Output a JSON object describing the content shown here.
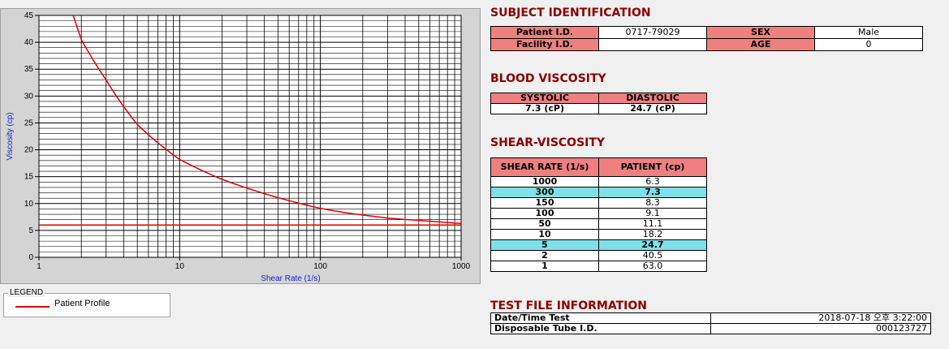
{
  "chart_data": {
    "type": "line",
    "xlabel": "Shear Rate (1/s)",
    "ylabel": "Viscosity (cp)",
    "xscale": "log",
    "xlim": [
      1,
      1000
    ],
    "ylim": [
      0,
      45
    ],
    "x_ticks": [
      "1",
      "10",
      "100",
      "1000"
    ],
    "y_ticks": [
      "0",
      "5",
      "10",
      "15",
      "20",
      "25",
      "30",
      "35",
      "40",
      "45"
    ],
    "grid": true,
    "series": [
      {
        "name": "Patient Profile",
        "color": "#e00000",
        "x": [
          2,
          3,
          5,
          10,
          20,
          50,
          100,
          150,
          300,
          1000
        ],
        "y": [
          40.5,
          33,
          24.7,
          18.2,
          14.5,
          11.1,
          9.1,
          8.3,
          7.3,
          6.3
        ]
      },
      {
        "name": "",
        "color": "#e00000",
        "x": [
          1,
          1000
        ],
        "y": [
          6,
          6
        ]
      }
    ],
    "legend_position": "bottom-left"
  },
  "legend": {
    "title": "LEGEND",
    "entries": [
      "Patient Profile"
    ]
  },
  "subject": {
    "title": "SUBJECT IDENTIFICATION",
    "patient_id_label": "Patient I.D.",
    "patient_id_value": "0717-79029",
    "sex_label": "SEX",
    "sex_value": "Male",
    "facility_id_label": "Facility I.D.",
    "facility_id_value": "",
    "age_label": "AGE",
    "age_value": "0"
  },
  "blood_viscosity": {
    "title": "BLOOD VISCOSITY",
    "systolic_label": "SYSTOLIC",
    "diastolic_label": "DIASTOLIC",
    "systolic_value": "7.3 (cP)",
    "diastolic_value": "24.7 (cP)"
  },
  "shear_viscosity": {
    "title": "SHEAR-VISCOSITY",
    "col_rate": "SHEAR RATE (1/s)",
    "col_patient": "PATIENT (cp)",
    "rows": [
      {
        "rate": "1000",
        "value": "6.3",
        "highlight": false
      },
      {
        "rate": "300",
        "value": "7.3",
        "highlight": true
      },
      {
        "rate": "150",
        "value": "8.3",
        "highlight": false
      },
      {
        "rate": "100",
        "value": "9.1",
        "highlight": false
      },
      {
        "rate": "50",
        "value": "11.1",
        "highlight": false
      },
      {
        "rate": "10",
        "value": "18.2",
        "highlight": false
      },
      {
        "rate": "5",
        "value": "24.7",
        "highlight": true
      },
      {
        "rate": "2",
        "value": "40.5",
        "highlight": false
      },
      {
        "rate": "1",
        "value": "63.0",
        "highlight": false
      }
    ],
    "highlight_color": "#80e0e8"
  },
  "test_file": {
    "title": "TEST FILE INFORMATION",
    "datetime_label": "Date/Time Test",
    "datetime_value": "2018-07-18  오후 3:22:00",
    "tube_label": "Disposable Tube I.D.",
    "tube_value": "000123727"
  }
}
